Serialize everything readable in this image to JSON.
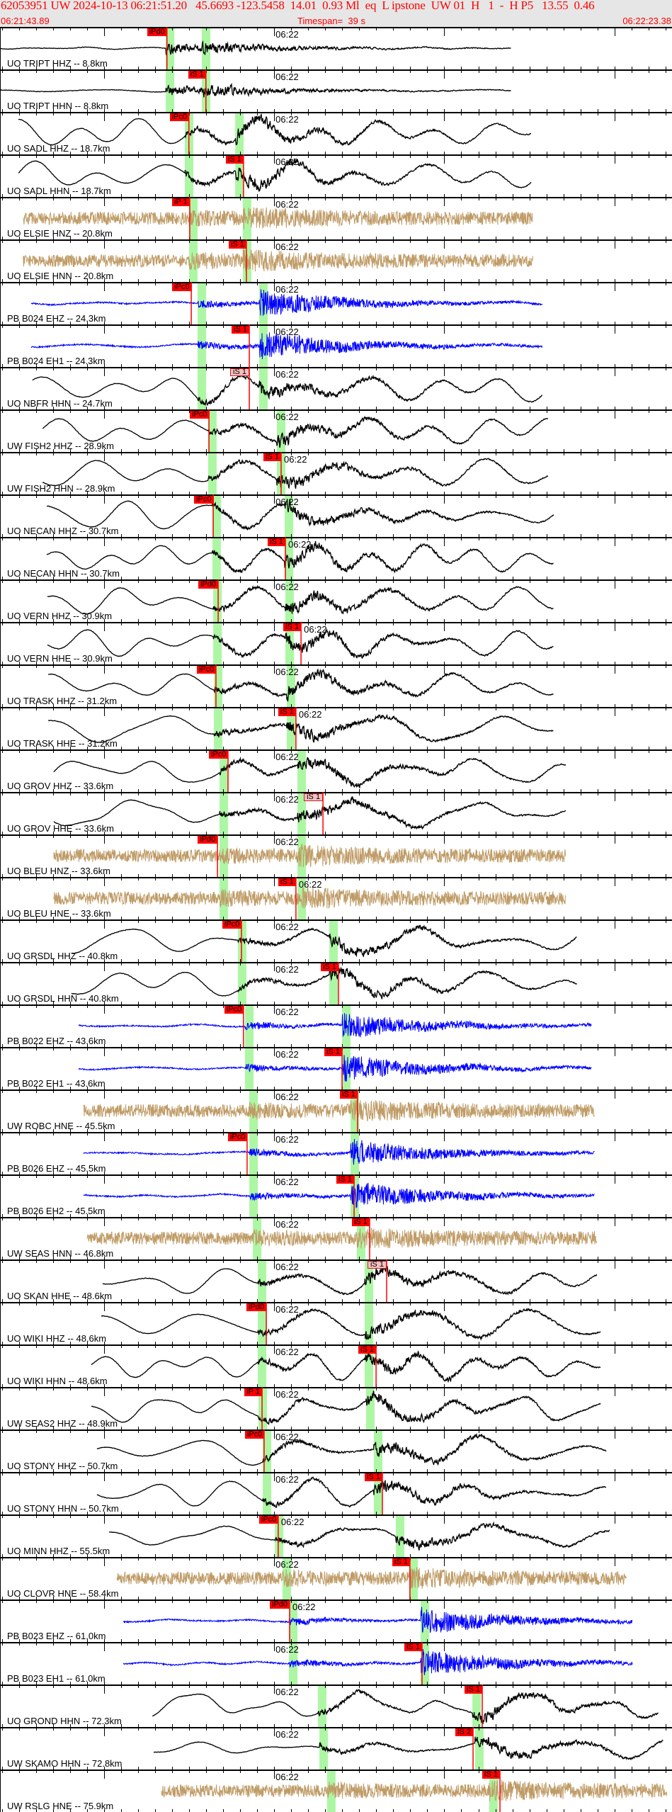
{
  "header": {
    "title": "62053951 UW 2024-10-13 06:21:51.20   45.6693 -123.5458  14.01  0.93 Ml  eq  L ipstone  UW 01  H   1  -  H P5   13.55  0.46",
    "start_time": "06:21:43.89",
    "timespan": "Timespan=  39 s",
    "end_time": "06:22:23.38"
  },
  "axis": {
    "minute_label": "06:22",
    "minute_time": "06:22:00",
    "minor_tick_s": 1,
    "major_tick_s": 10
  },
  "colors": {
    "broadband": "#000000",
    "accelerometer": "#bf9b66",
    "strainmeter": "#0000ff",
    "pick": "#ff0000",
    "predicted_window": "#adf7a4",
    "header_bg": "#e6e6e6"
  },
  "channels": [
    {
      "label": "UO TRIPT HHZ -- 8.8km",
      "kind": "broadband",
      "trace": [
        "06:21:43.89",
        "06:22:13.93"
      ],
      "windows": [
        "06:21:53.63",
        "06:21:55.75"
      ],
      "pick": {
        "label": "iPd0",
        "time": "06:21:53.70"
      }
    },
    {
      "label": "UO TRIPT HHN -- 8.8km",
      "kind": "broadband",
      "trace": [
        "06:21:43.89",
        "06:22:13.93"
      ],
      "windows": [
        "06:21:53.63",
        "06:21:55.75"
      ],
      "pick": {
        "label": "iS 1",
        "time": "06:21:55.99"
      }
    },
    {
      "label": "UO SADL HHZ -- 18.7km",
      "kind": "broadband",
      "trace": [
        "06:21:44.97",
        "06:22:15.10"
      ],
      "windows": [
        "06:21:54.75",
        "06:21:57.71"
      ],
      "pick": {
        "label": "iPc0",
        "time": "06:21:54.99"
      }
    },
    {
      "label": "UO SADL HHN -- 18.7km",
      "kind": "broadband",
      "trace": [
        "06:21:44.97",
        "06:22:15.10"
      ],
      "windows": [
        "06:21:54.75",
        "06:21:57.71"
      ],
      "pick": {
        "label": "iS 1",
        "time": "06:21:58.20"
      }
    },
    {
      "label": "UO ELSIE HNZ -- 20.8km",
      "kind": "accelerometer",
      "trace": [
        "06:21:45.26",
        "06:22:15.22"
      ],
      "windows": [
        "06:21:55.00",
        "06:21:58.16"
      ],
      "pick": {
        "label": "iP 1",
        "time": "06:21:55.04"
      }
    },
    {
      "label": "UO ELSIE HNN -- 20.8km",
      "kind": "accelerometer",
      "trace": [
        "06:21:45.26",
        "06:22:15.22"
      ],
      "windows": [
        "06:21:55.00",
        "06:21:58.16"
      ],
      "pick": {
        "label": "iS 1",
        "time": "06:21:58.37"
      }
    },
    {
      "label": "PB B024 EHZ -- 24.3km",
      "kind": "strainmeter",
      "trace": [
        "06:21:45.72",
        "06:22:15.77"
      ],
      "windows": [
        "06:21:55.50",
        "06:21:59.12"
      ],
      "pick": {
        "label": "iPc0",
        "time": "06:21:55.13"
      }
    },
    {
      "label": "PB B024 EH1 -- 24.3km",
      "kind": "strainmeter",
      "trace": [
        "06:21:45.72",
        "06:22:15.77"
      ],
      "windows": [
        "06:21:55.50",
        "06:21:59.12"
      ],
      "pick": {
        "label": "iS 1",
        "time": "06:21:58.54"
      }
    },
    {
      "label": "UO NBFR HHN -- 24.7km",
      "kind": "broadband",
      "trace": [
        "06:21:45.80",
        "06:22:15.77"
      ],
      "windows": [
        "06:21:55.50",
        "06:21:59.12"
      ],
      "pick": {
        "label": "iS 1",
        "time": "06:21:58.54",
        "pale": true
      }
    },
    {
      "label": "UW FISH2 HHZ -- 28.9km",
      "kind": "broadband",
      "trace": [
        "06:21:46.39",
        "06:22:16.10"
      ],
      "windows": [
        "06:21:56.12",
        "06:22:00.16"
      ],
      "pick": {
        "label": "iPc0",
        "time": "06:21:56.17"
      }
    },
    {
      "label": "UW FISH2 HHN -- 28.9km",
      "kind": "broadband",
      "trace": [
        "06:21:46.39",
        "06:22:16.10"
      ],
      "windows": [
        "06:21:56.12",
        "06:22:00.16"
      ],
      "pick": {
        "label": "iS 1",
        "time": "06:22:00.41"
      }
    },
    {
      "label": "UO NECAN HHZ -- 30.7km",
      "kind": "broadband",
      "trace": [
        "06:21:46.64",
        "06:22:16.43"
      ],
      "windows": [
        "06:21:56.37",
        "06:22:00.62"
      ],
      "pick": {
        "label": "iPc0",
        "time": "06:21:56.42"
      }
    },
    {
      "label": "UO NECAN HHN -- 30.7km",
      "kind": "broadband",
      "trace": [
        "06:21:46.64",
        "06:22:16.43"
      ],
      "windows": [
        "06:21:56.37",
        "06:22:00.62"
      ],
      "pick": {
        "label": "iS 1",
        "time": "06:22:00.66"
      }
    },
    {
      "label": "UO VERN HHZ -- 30.9km",
      "kind": "broadband",
      "trace": [
        "06:21:46.68",
        "06:22:16.43"
      ],
      "windows": [
        "06:21:56.42",
        "06:22:00.66"
      ],
      "pick": {
        "label": "iPd0",
        "time": "06:21:56.71"
      }
    },
    {
      "label": "UO VERN HHE -- 30.9km",
      "kind": "broadband",
      "trace": [
        "06:21:46.68",
        "06:22:16.43"
      ],
      "windows": [
        "06:21:56.42",
        "06:22:00.66"
      ],
      "pick": {
        "label": "iS 1",
        "time": "06:22:01.58"
      }
    },
    {
      "label": "UO TRASK HHZ -- 31.2km",
      "kind": "broadband",
      "trace": [
        "06:21:46.72",
        "06:22:16.43"
      ],
      "windows": [
        "06:21:56.46",
        "06:22:00.74"
      ],
      "pick": {
        "label": "iPc0",
        "time": "06:21:56.58"
      }
    },
    {
      "label": "UO TRASK HHE -- 31.2km",
      "kind": "broadband",
      "trace": [
        "06:21:46.72",
        "06:22:16.43"
      ],
      "windows": [
        "06:21:56.46",
        "06:22:00.74"
      ],
      "pick": {
        "label": "iS 1",
        "time": "06:22:01.28"
      }
    },
    {
      "label": "UO GROV HHZ -- 33.6km",
      "kind": "broadband",
      "trace": [
        "06:21:47.05",
        "06:22:17.14"
      ],
      "windows": [
        "06:21:56.79",
        "06:22:01.37"
      ],
      "pick": {
        "label": "iPc0",
        "time": "06:21:57.29"
      }
    },
    {
      "label": "UO GROV HHE -- 33.6km",
      "kind": "broadband",
      "trace": [
        "06:21:47.05",
        "06:22:17.14"
      ],
      "windows": [
        "06:21:56.79",
        "06:22:01.37"
      ],
      "pick": {
        "label": "iS 1",
        "time": "06:22:02.87",
        "pale": true
      }
    },
    {
      "label": "UO BLEU HNZ -- 33.6km",
      "kind": "accelerometer",
      "trace": [
        "06:21:47.05",
        "06:22:17.14"
      ],
      "windows": [
        "06:21:56.79",
        "06:22:01.37"
      ],
      "pick": {
        "label": "iPd0",
        "time": "06:21:56.67"
      }
    },
    {
      "label": "UO BLEU HNE -- 33.6km",
      "kind": "accelerometer",
      "trace": [
        "06:21:47.05",
        "06:22:17.14"
      ],
      "windows": [
        "06:21:56.79",
        "06:22:01.37"
      ],
      "pick": {
        "label": "iS 1",
        "time": "06:22:01.28"
      }
    },
    {
      "label": "UO GRSDL HHZ -- 40.8km",
      "kind": "broadband",
      "trace": [
        "06:21:48.09",
        "06:22:17.80"
      ],
      "windows": [
        "06:21:57.87",
        "06:22:03.24"
      ],
      "pick": {
        "label": "iPc0",
        "time": "06:21:58.08"
      }
    },
    {
      "label": "UO GRSDL HHN -- 40.8km",
      "kind": "broadband",
      "trace": [
        "06:21:48.09",
        "06:22:17.80"
      ],
      "windows": [
        "06:21:57.87",
        "06:22:03.24"
      ],
      "pick": {
        "label": "iS 1",
        "time": "06:22:03.78"
      }
    },
    {
      "label": "PB B022 EHZ -- 43.6km",
      "kind": "strainmeter",
      "trace": [
        "06:21:48.51",
        "06:22:18.64"
      ],
      "windows": [
        "06:21:58.29",
        "06:22:03.99"
      ],
      "pick": {
        "label": "iPc0",
        "time": "06:21:58.20"
      }
    },
    {
      "label": "PB B022 EH1 -- 43.6km",
      "kind": "strainmeter",
      "trace": [
        "06:21:48.51",
        "06:22:18.64"
      ],
      "windows": [
        "06:21:58.29",
        "06:22:03.99"
      ],
      "pick": {
        "label": "iS 1",
        "time": "06:22:03.99"
      }
    },
    {
      "label": "UW ROBC HNE -- 45.5km",
      "kind": "accelerometer",
      "trace": [
        "06:21:48.80",
        "06:22:18.84"
      ],
      "windows": [
        "06:21:58.54",
        "06:22:04.49"
      ],
      "pick": {
        "label": "iS 1",
        "time": "06:22:04.90"
      }
    },
    {
      "label": "PB B026 EHZ -- 45.5km",
      "kind": "strainmeter",
      "trace": [
        "06:21:48.80",
        "06:22:18.84"
      ],
      "windows": [
        "06:21:58.54",
        "06:22:04.49"
      ],
      "pick": {
        "label": "iPc0",
        "time": "06:21:58.41"
      }
    },
    {
      "label": "PB B026 EH2 -- 45.5km",
      "kind": "strainmeter",
      "trace": [
        "06:21:48.80",
        "06:22:18.84"
      ],
      "windows": [
        "06:21:58.54",
        "06:22:04.49"
      ],
      "pick": {
        "label": "iS 1",
        "time": "06:22:04.70"
      }
    },
    {
      "label": "UW SEAS HNN -- 46.8km",
      "kind": "accelerometer",
      "trace": [
        "06:21:49.01",
        "06:22:18.97"
      ],
      "windows": [
        "06:21:58.75",
        "06:22:04.86"
      ],
      "pick": {
        "label": "iS 1",
        "time": "06:22:05.61"
      }
    },
    {
      "label": "UO SKAN HHE -- 48.6km",
      "kind": "broadband",
      "trace": [
        "06:21:49.92",
        "06:22:18.97"
      ],
      "windows": [
        "06:21:59.04",
        "06:22:05.32"
      ],
      "pick": {
        "label": "iS 1",
        "time": "06:22:06.61",
        "pale": true
      }
    },
    {
      "label": "UO WIKI HHZ -- 48.6km",
      "kind": "broadband",
      "trace": [
        "06:21:49.84",
        "06:22:19.18"
      ],
      "windows": [
        "06:21:59.04",
        "06:22:05.32"
      ],
      "pick": {
        "label": "iPd0",
        "time": "06:21:59.54"
      }
    },
    {
      "label": "UO WIKI HHN -- 48.6km",
      "kind": "broadband",
      "trace": [
        "06:21:49.26",
        "06:22:19.18"
      ],
      "windows": [
        "06:21:59.04",
        "06:22:05.32"
      ],
      "pick": {
        "label": "iS 1",
        "time": "06:22:05.99"
      }
    },
    {
      "label": "UW SEAS2 HHZ -- 48.9km",
      "kind": "broadband",
      "trace": [
        "06:21:49.26",
        "06:22:19.18"
      ],
      "windows": [
        "06:21:59.08",
        "06:22:05.40"
      ],
      "pick": {
        "label": "iP 1",
        "time": "06:21:59.29"
      }
    },
    {
      "label": "UO STONY HHZ -- 50.7km",
      "kind": "broadband",
      "trace": [
        "06:21:49.59",
        "06:22:19.51"
      ],
      "windows": [
        "06:21:59.33",
        "06:22:05.86"
      ],
      "pick": {
        "label": "iPc0",
        "time": "06:21:59.41"
      }
    },
    {
      "label": "UO STONY HHN -- 50.7km",
      "kind": "broadband",
      "trace": [
        "06:21:49.59",
        "06:22:19.51"
      ],
      "windows": [
        "06:21:59.33",
        "06:22:05.86"
      ],
      "pick": {
        "label": "iS 1",
        "time": "06:22:06.36"
      }
    },
    {
      "label": "UO MINN HHZ -- 55.5km",
      "kind": "broadband",
      "trace": [
        "06:21:50.30",
        "06:22:19.72"
      ],
      "windows": [
        "06:22:00.04",
        "06:22:07.15"
      ],
      "pick": {
        "label": "iPc0",
        "time": "06:22:00.24"
      }
    },
    {
      "label": "UO CLOVR HNE -- 58.4km",
      "kind": "accelerometer",
      "trace": [
        "06:21:50.76",
        "06:22:20.72"
      ],
      "windows": [
        "06:22:00.49",
        "06:22:07.94"
      ],
      "pick": {
        "label": "iS 1",
        "time": "06:22:07.98"
      }
    },
    {
      "label": "PB B023 EHZ -- 61.0km",
      "kind": "strainmeter",
      "trace": [
        "06:21:51.13",
        "06:22:21.05"
      ],
      "windows": [
        "06:22:00.87",
        "06:22:08.61"
      ],
      "pick": {
        "label": "iPd0",
        "time": "06:22:00.91"
      }
    },
    {
      "label": "PB B023 EH1 -- 61.0km",
      "kind": "strainmeter",
      "trace": [
        "06:21:51.13",
        "06:22:21.05"
      ],
      "windows": [
        "06:22:00.87",
        "06:22:08.61"
      ],
      "pick": {
        "label": "iS 1",
        "time": "06:22:08.69"
      }
    },
    {
      "label": "UO GROND HHN -- 72.3km",
      "kind": "broadband",
      "trace": [
        "06:21:52.84",
        "06:22:22.59"
      ],
      "windows": [
        "06:22:02.57",
        "06:22:11.65"
      ],
      "pick": {
        "label": "iS 1",
        "time": "06:22:12.23"
      }
    },
    {
      "label": "UW SKAMO HHN -- 72.8km",
      "kind": "broadband",
      "trace": [
        "06:21:52.92",
        "06:22:22.88"
      ],
      "windows": [
        "06:22:02.66",
        "06:22:11.81"
      ],
      "pick": {
        "label": "iS 2",
        "time": "06:22:11.69"
      }
    },
    {
      "label": "UW RSLG HNE -- 75.9km",
      "kind": "accelerometer",
      "trace": [
        "06:21:53.38",
        "06:22:23.09"
      ],
      "windows": [
        "06:22:03.11",
        "06:22:12.64"
      ],
      "pick": {
        "label": "iS 1",
        "time": "06:22:13.27"
      }
    }
  ]
}
